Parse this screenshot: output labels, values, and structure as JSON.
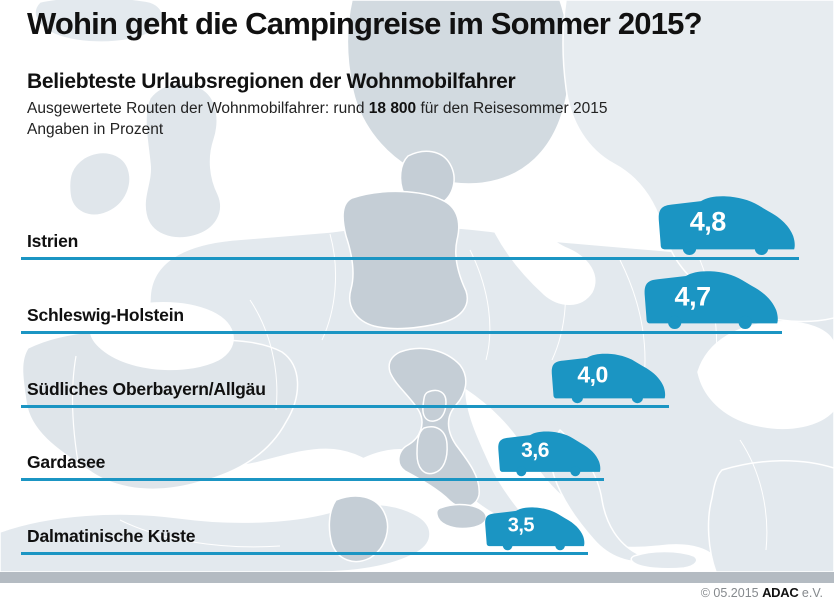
{
  "header": {
    "title": "Wohin geht die Campingreise im Sommer 2015?",
    "subtitle": "Beliebteste Urlaubsregionen der Wohnmobilfahrer",
    "note_prefix": "Ausgewertete Routen der Wohnmobilfahrer: rund ",
    "note_bold": "18 800",
    "note_suffix": " für den Reisesommer 2015",
    "unit_note": "Angaben in Prozent"
  },
  "chart_data": {
    "type": "bar",
    "orientation": "horizontal",
    "unit": "percent",
    "title": "Beliebteste Urlaubsregionen der Wohnmobilfahrer",
    "subtitle": "Ausgewertete Routen der Wohnmobilfahrer: rund 18 800 für den Reisesommer 2015",
    "categories": [
      "Istrien",
      "Schleswig-Holstein",
      "Südliches Oberbayern/Allgäu",
      "Gardasee",
      "Dalmatinische Küste"
    ],
    "values": [
      4.8,
      4.7,
      4.0,
      3.6,
      3.5
    ],
    "value_labels": [
      "4,8",
      "4,7",
      "4,0",
      "3,6",
      "3,5"
    ],
    "xlim": [
      0,
      5
    ],
    "bar_icon": "camper-van",
    "legend": "none",
    "grid": "off"
  },
  "icons": {
    "bar_icon_name": "camper-van-icon"
  },
  "colors": {
    "accent_blue": "#1b95c3",
    "value_text": "#ffffff",
    "map_sea": "#ffffff",
    "map_land_light": "#e3e9ee",
    "map_land_medium": "#d2dae0",
    "map_land_dark": "#c5ced6",
    "footer_bar": "#b4bbc2",
    "text_black": "#111111",
    "footer_gray": "#85898d"
  },
  "footer": {
    "copyright_prefix": "© 05.2015 ",
    "brand": "ADAC",
    "suffix": " e.V."
  }
}
